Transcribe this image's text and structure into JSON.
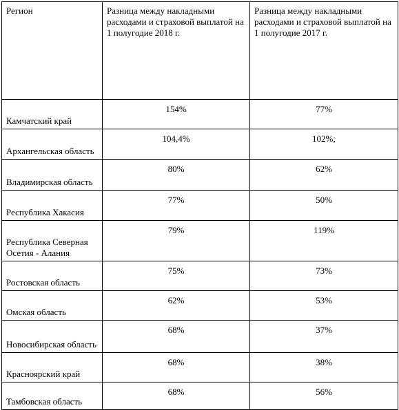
{
  "table": {
    "headers": [
      "Регион",
      "Разница между накладными расходами и страховой выплатой на 1 полугодие 2018 г.",
      "Разница между накладными расходами и страховой выплатой на 1 полугодие 2017 г."
    ],
    "rows": [
      {
        "region": "Камчатский край",
        "v2018": "154%",
        "v2017": "77%"
      },
      {
        "region": "Архангельская область",
        "v2018": "104,4%",
        "v2017": "102%;"
      },
      {
        "region": "Владимирская область",
        "v2018": "80%",
        "v2017": "62%"
      },
      {
        "region": "Республика Хакасия",
        "v2018": "77%",
        "v2017": "50%"
      },
      {
        "region": "Республика Северная Осетия - Алания",
        "v2018": "79%",
        "v2017": "119%"
      },
      {
        "region": "Ростовская область",
        "v2018": "75%",
        "v2017": "73%"
      },
      {
        "region": "Омская область",
        "v2018": "62%",
        "v2017": "53%"
      },
      {
        "region": "Новосибирская область",
        "v2018": "68%",
        "v2017": "37%"
      },
      {
        "region": "Красноярский край",
        "v2018": "68%",
        "v2017": "38%"
      },
      {
        "region": "Тамбовская область",
        "v2018": "68%",
        "v2017": "56%"
      }
    ]
  }
}
